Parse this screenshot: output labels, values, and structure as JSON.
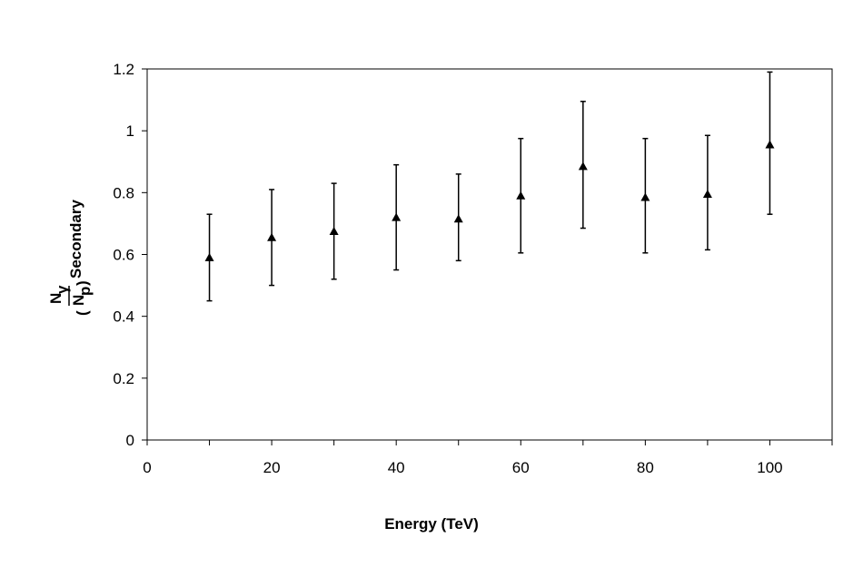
{
  "chart_data": {
    "type": "scatter",
    "title": "",
    "xlabel": "Energy (TeV)",
    "ylabel": {
      "numerator": "N",
      "numerator_sub": "γ",
      "denominator": "N",
      "denominator_sub": "p",
      "open_paren": "(",
      "close_paren": ")",
      "suffix": "Secondary"
    },
    "xlim": [
      0,
      110
    ],
    "ylim": [
      0,
      1.2
    ],
    "xticks": [
      0,
      20,
      40,
      60,
      80,
      100
    ],
    "yticks": [
      0,
      0.2,
      0.4,
      0.6,
      0.8,
      1,
      1.2
    ],
    "xtick_labels": [
      "0",
      "20",
      "40",
      "60",
      "80",
      "100"
    ],
    "ytick_labels": [
      "0",
      "0.2",
      "0.4",
      "0.6",
      "0.8",
      "1",
      "1.2"
    ],
    "grid": false,
    "marker": "triangle",
    "series": [
      {
        "points": [
          {
            "x": 10,
            "y": 0.59,
            "y_low": 0.45,
            "y_high": 0.73
          },
          {
            "x": 20,
            "y": 0.655,
            "y_low": 0.5,
            "y_high": 0.81
          },
          {
            "x": 30,
            "y": 0.675,
            "y_low": 0.52,
            "y_high": 0.83
          },
          {
            "x": 40,
            "y": 0.72,
            "y_low": 0.55,
            "y_high": 0.89
          },
          {
            "x": 50,
            "y": 0.715,
            "y_low": 0.58,
            "y_high": 0.86
          },
          {
            "x": 60,
            "y": 0.79,
            "y_low": 0.605,
            "y_high": 0.975
          },
          {
            "x": 70,
            "y": 0.885,
            "y_low": 0.685,
            "y_high": 1.095
          },
          {
            "x": 80,
            "y": 0.785,
            "y_low": 0.605,
            "y_high": 0.975
          },
          {
            "x": 90,
            "y": 0.795,
            "y_low": 0.615,
            "y_high": 0.985
          },
          {
            "x": 100,
            "y": 0.955,
            "y_low": 0.73,
            "y_high": 1.19
          }
        ]
      }
    ]
  }
}
